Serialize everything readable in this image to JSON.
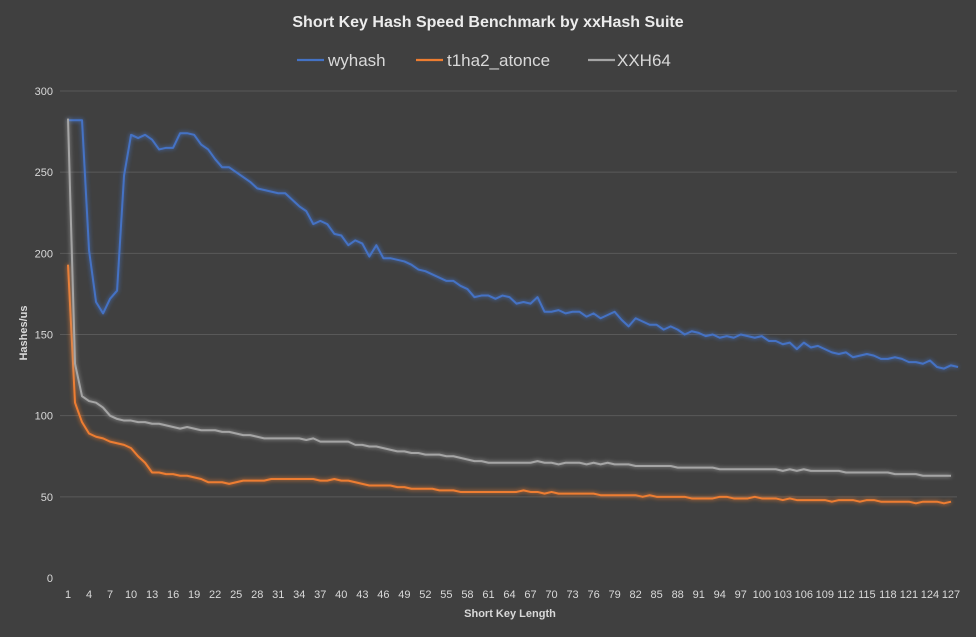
{
  "chart_data": {
    "type": "line",
    "title": "Short Key Hash Speed Benchmark by xxHash Suite",
    "xlabel": "Short  Key Length",
    "ylabel": "Hashes/us",
    "ylim": [
      0,
      300
    ],
    "y_ticks": [
      0,
      50,
      100,
      150,
      200,
      250,
      300
    ],
    "x_range": [
      1,
      127
    ],
    "x_tick_labels": [
      1,
      4,
      7,
      10,
      13,
      16,
      19,
      22,
      25,
      28,
      31,
      34,
      37,
      40,
      43,
      46,
      49,
      52,
      55,
      58,
      61,
      64,
      67,
      70,
      73,
      76,
      79,
      82,
      85,
      88,
      91,
      94,
      97,
      100,
      103,
      106,
      109,
      112,
      115,
      118,
      121,
      124,
      127
    ],
    "grid": true,
    "legend_position": "top",
    "series": [
      {
        "name": "wyhash",
        "color": "#4472c4",
        "values": [
          282,
          282,
          282,
          202,
          170,
          163,
          172,
          177,
          248,
          273,
          271,
          273,
          270,
          264,
          265,
          265,
          274,
          274,
          273,
          267,
          264,
          258,
          253,
          253,
          250,
          247,
          244,
          240,
          239,
          238,
          237,
          237,
          233,
          229,
          226,
          218,
          220,
          218,
          212,
          211,
          205,
          208,
          206,
          198,
          205,
          197,
          197,
          196,
          195,
          193,
          190,
          189,
          187,
          185,
          183,
          183,
          180,
          178,
          173,
          174,
          174,
          172,
          174,
          173,
          169,
          170,
          169,
          173,
          164,
          164,
          165,
          163,
          164,
          164,
          161,
          163,
          160,
          162,
          164,
          159,
          155,
          160,
          158,
          156,
          156,
          153,
          155,
          153,
          150,
          152,
          151,
          149,
          150,
          148,
          149,
          148,
          150,
          149,
          148,
          149,
          146,
          146,
          144,
          145,
          141,
          145,
          142,
          143,
          141,
          139,
          138,
          139,
          136,
          137,
          138,
          137,
          135,
          135,
          136,
          135,
          133,
          133,
          132,
          134,
          130,
          129,
          131,
          130
        ]
      },
      {
        "name": "t1ha2_atonce",
        "color": "#ed7d31",
        "values": [
          193,
          108,
          96,
          89,
          87,
          86,
          84,
          83,
          82,
          80,
          75,
          71,
          65,
          65,
          64,
          64,
          63,
          63,
          62,
          61,
          59,
          59,
          59,
          58,
          59,
          60,
          60,
          60,
          60,
          61,
          61,
          61,
          61,
          61,
          61,
          61,
          60,
          60,
          61,
          60,
          60,
          59,
          58,
          57,
          57,
          57,
          57,
          56,
          56,
          55,
          55,
          55,
          55,
          54,
          54,
          54,
          53,
          53,
          53,
          53,
          53,
          53,
          53,
          53,
          53,
          54,
          53,
          53,
          52,
          53,
          52,
          52,
          52,
          52,
          52,
          52,
          51,
          51,
          51,
          51,
          51,
          51,
          50,
          51,
          50,
          50,
          50,
          50,
          50,
          49,
          49,
          49,
          49,
          50,
          50,
          49,
          49,
          49,
          50,
          49,
          49,
          49,
          48,
          49,
          48,
          48,
          48,
          48,
          48,
          47,
          48,
          48,
          48,
          47,
          48,
          48,
          47,
          47,
          47,
          47,
          47,
          46,
          47,
          47,
          47,
          46,
          47
        ]
      },
      {
        "name": "XXH64",
        "color": "#a5a5a5",
        "values": [
          283,
          132,
          112,
          109,
          108,
          105,
          100,
          98,
          97,
          97,
          96,
          96,
          95,
          95,
          94,
          93,
          92,
          93,
          92,
          91,
          91,
          91,
          90,
          90,
          89,
          88,
          88,
          87,
          86,
          86,
          86,
          86,
          86,
          86,
          85,
          86,
          84,
          84,
          84,
          84,
          84,
          82,
          82,
          81,
          81,
          80,
          79,
          78,
          78,
          77,
          77,
          76,
          76,
          76,
          75,
          75,
          74,
          73,
          72,
          72,
          71,
          71,
          71,
          71,
          71,
          71,
          71,
          72,
          71,
          71,
          70,
          71,
          71,
          71,
          70,
          71,
          70,
          71,
          70,
          70,
          70,
          69,
          69,
          69,
          69,
          69,
          69,
          68,
          68,
          68,
          68,
          68,
          68,
          67,
          67,
          67,
          67,
          67,
          67,
          67,
          67,
          67,
          66,
          67,
          66,
          67,
          66,
          66,
          66,
          66,
          66,
          65,
          65,
          65,
          65,
          65,
          65,
          65,
          64,
          64,
          64,
          64,
          63,
          63,
          63,
          63,
          63
        ]
      }
    ]
  }
}
